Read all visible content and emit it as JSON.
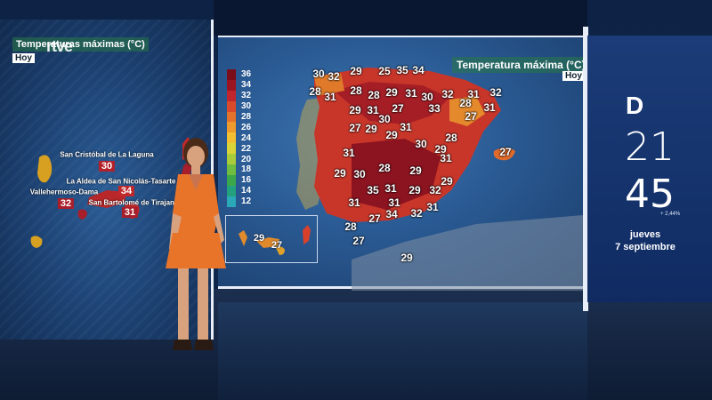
{
  "left_screen": {
    "title": "Temperaturas máximas (°C)",
    "day": "Hoy",
    "logo": "rtve",
    "islands": [
      {
        "name": "San Cristóbal de La Laguna",
        "value": "30",
        "color": "#b3202a"
      },
      {
        "name": "La Aldea de San Nicolás-Tasarte",
        "value": "34",
        "color": "#c0282a"
      },
      {
        "name": "Vallehermoso-Dama",
        "value": "32",
        "color": "#a81e2a"
      },
      {
        "name": "San Bartolomé de Tirajana",
        "value": "31",
        "color": "#a81e2a"
      }
    ]
  },
  "main_map": {
    "title": "Temperatura máxima (°C)",
    "day": "Hoy",
    "legend": {
      "labels": [
        "36",
        "34",
        "32",
        "30",
        "28",
        "26",
        "24",
        "22",
        "20",
        "18",
        "16",
        "14",
        "12"
      ],
      "colors": [
        "#7a0d1a",
        "#9c1422",
        "#c0262c",
        "#d84a2a",
        "#e5722a",
        "#ee9a2c",
        "#f2bf33",
        "#d9d437",
        "#a8cc3a",
        "#6fbd40",
        "#3aa84a",
        "#23a07d",
        "#2aa8b8"
      ]
    },
    "values": [
      "30",
      "32",
      "29",
      "25",
      "35",
      "34",
      "28",
      "31",
      "28",
      "28",
      "29",
      "31",
      "30",
      "32",
      "31",
      "32",
      "33",
      "28",
      "31",
      "29",
      "31",
      "27",
      "27",
      "30",
      "27",
      "29",
      "31",
      "29",
      "28",
      "30",
      "31",
      "29",
      "28",
      "29",
      "31",
      "30",
      "29",
      "32",
      "31",
      "29",
      "31",
      "29",
      "35",
      "31",
      "31",
      "34",
      "32",
      "28",
      "27",
      "27",
      "29",
      "27"
    ],
    "canary_values": [
      "29",
      "27"
    ]
  },
  "ticker": {
    "logo": "D",
    "hour": "21",
    "minute": "45",
    "change": "+ 2,44%",
    "day": "jueves",
    "date": "7 septiembre"
  }
}
